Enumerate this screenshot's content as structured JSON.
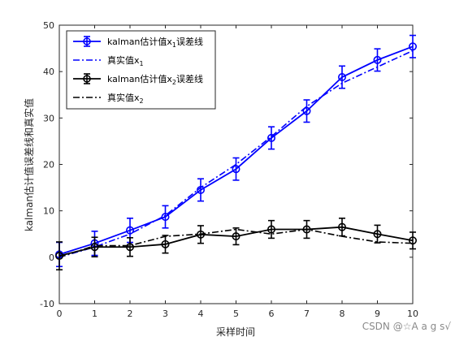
{
  "chart_data": {
    "type": "line",
    "xlabel": "采样时间",
    "ylabel": "kalman估计值误差线和真实值",
    "xlim": [
      0,
      10
    ],
    "ylim": [
      -10,
      50
    ],
    "x_ticks": [
      0,
      1,
      2,
      3,
      4,
      5,
      6,
      7,
      8,
      9,
      10
    ],
    "y_ticks": [
      -10,
      0,
      10,
      20,
      30,
      40,
      50
    ],
    "x": [
      0,
      1,
      2,
      3,
      4,
      5,
      6,
      7,
      8,
      9,
      10
    ],
    "legend_position": "top-left",
    "grid": false,
    "series": [
      {
        "name_main": "kalman估计值x",
        "name_sub": "1",
        "name_suffix": "误差线",
        "style": "solid-circle-errorbar",
        "color": "#0000ff",
        "values": [
          0.6,
          3.0,
          5.8,
          8.7,
          14.5,
          19.0,
          25.7,
          31.5,
          38.8,
          42.5,
          45.4
        ],
        "errors": [
          2.6,
          2.6,
          2.6,
          2.4,
          2.4,
          2.4,
          2.4,
          2.4,
          2.4,
          2.4,
          2.4
        ]
      },
      {
        "name_main": "真实值x",
        "name_sub": "1",
        "name_suffix": "",
        "style": "dashdot",
        "color": "#0000ff",
        "values": [
          0,
          2.2,
          5.0,
          9.0,
          15.0,
          20.0,
          26.0,
          32.5,
          37.5,
          41.0,
          44.5
        ]
      },
      {
        "name_main": "kalman估计值x",
        "name_sub": "2",
        "name_suffix": "误差线",
        "style": "solid-circle-errorbar",
        "color": "#000000",
        "values": [
          0.3,
          2.2,
          2.2,
          2.8,
          4.9,
          4.5,
          6.0,
          6.0,
          6.5,
          5.0,
          3.6
        ],
        "errors": [
          3.0,
          2.1,
          2.0,
          1.9,
          1.9,
          1.8,
          1.9,
          1.9,
          1.9,
          1.9,
          1.8
        ]
      },
      {
        "name_main": "真实值x",
        "name_sub": "2",
        "name_suffix": "",
        "style": "dashdot",
        "color": "#000000",
        "values": [
          0,
          2.5,
          2.5,
          4.5,
          5.0,
          6.0,
          5.0,
          6.0,
          4.5,
          3.3,
          3.0
        ]
      }
    ]
  },
  "watermark": "CSDN @☆A a g s√"
}
